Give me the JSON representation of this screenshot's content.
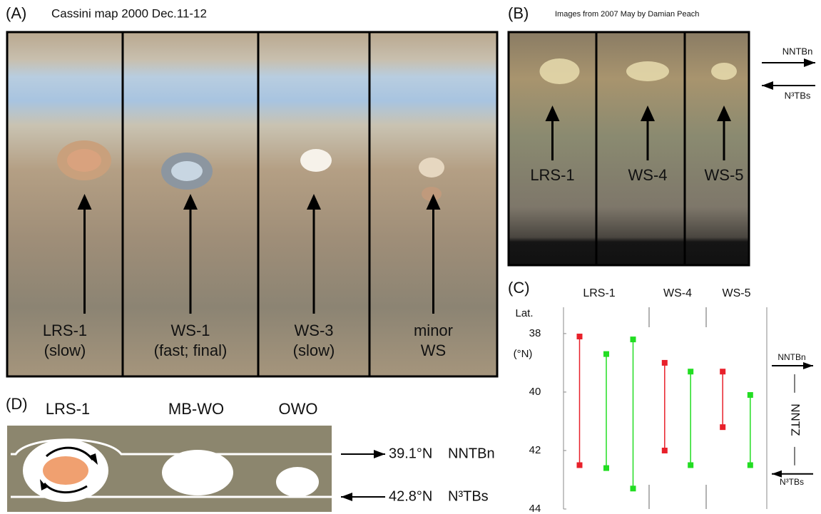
{
  "panel_a": {
    "label": "(A)",
    "caption": "Cassini map  2000 Dec.11-12",
    "strips": [
      {
        "lines": [
          "LRS-1",
          "(slow)"
        ]
      },
      {
        "lines": [
          "WS-1",
          "(fast; final)"
        ]
      },
      {
        "lines": [
          "WS-3",
          "(slow)"
        ]
      },
      {
        "lines": [
          "minor",
          "WS"
        ]
      }
    ]
  },
  "panel_b": {
    "label": "(B)",
    "caption": "Images from 2007 May by Damian Peach",
    "strips": [
      "LRS-1",
      "WS-4",
      "WS-5"
    ],
    "arrows": [
      "NNTBn",
      "N³TBs"
    ]
  },
  "panel_d": {
    "label": "(D)",
    "ovals": [
      "LRS-1",
      "MB-WO",
      "OWO"
    ],
    "boundaries": [
      {
        "lat": "39.1°N",
        "name": "NNTBn"
      },
      {
        "lat": "42.8°N",
        "name": "N³TBs"
      }
    ]
  },
  "chart_data": {
    "type": "range",
    "panel": "(C)",
    "ylabel": [
      "Lat.",
      "(°N)"
    ],
    "ylim": [
      37.1,
      44
    ],
    "yticks": [
      38,
      40,
      42,
      44
    ],
    "y_inverted": true,
    "groups": [
      {
        "label": "LRS-1",
        "bars": [
          {
            "color": "#e8202a",
            "top": 38.1,
            "bottom": 42.5
          },
          {
            "color": "#22dd22",
            "top": 38.7,
            "bottom": 42.6
          },
          {
            "color": "#22dd22",
            "top": 38.2,
            "bottom": 43.3
          }
        ]
      },
      {
        "label": "WS-4",
        "bars": [
          {
            "color": "#e8202a",
            "top": 39.0,
            "bottom": 42.0
          },
          {
            "color": "#22dd22",
            "top": 39.3,
            "bottom": 42.5
          }
        ]
      },
      {
        "label": "WS-5",
        "bars": [
          {
            "color": "#e8202a",
            "top": 39.3,
            "bottom": 41.2
          },
          {
            "color": "#22dd22",
            "top": 40.1,
            "bottom": 42.5
          }
        ]
      }
    ],
    "zone_label": "NNTZ",
    "annotations": [
      {
        "text": "NNTBn",
        "value": 39.1,
        "direction": "right"
      },
      {
        "text": "N³TBs",
        "value": 42.8,
        "direction": "left"
      }
    ]
  }
}
